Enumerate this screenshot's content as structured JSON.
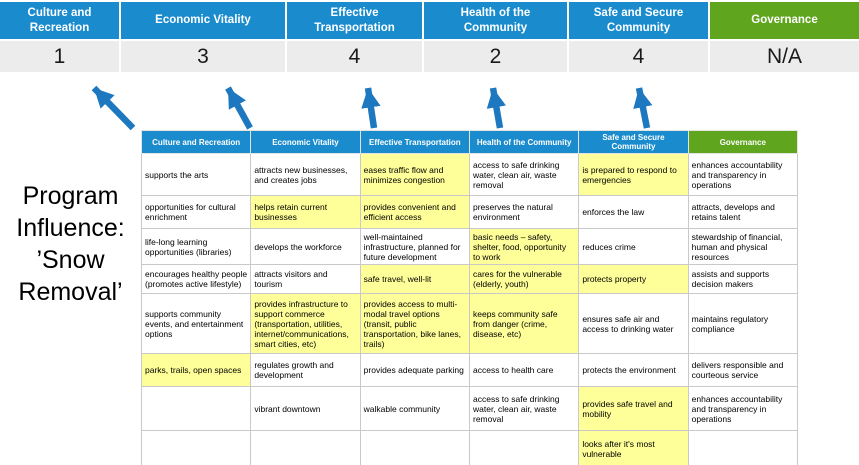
{
  "program": {
    "title": "Program Influence: ’Snow Removal’"
  },
  "colors": {
    "header_blue": "#1a8cce",
    "header_green": "#5fa51d",
    "highlight_yellow": "#ffff99",
    "arrow_blue": "#1e78c0",
    "score_bg": "#ececec"
  },
  "summary": {
    "columns": [
      {
        "label": "Culture and Recreation",
        "score": "1",
        "variant": "blue"
      },
      {
        "label": "Economic Vitality",
        "score": "3",
        "variant": "blue"
      },
      {
        "label": "Effective Transportation",
        "score": "4",
        "variant": "blue"
      },
      {
        "label": "Health of the Community",
        "score": "2",
        "variant": "blue"
      },
      {
        "label": "Safe and Secure Community",
        "score": "4",
        "variant": "blue"
      },
      {
        "label": "Governance",
        "score": "N/A",
        "variant": "green"
      }
    ]
  },
  "table": {
    "headers": [
      {
        "label": "Culture and Recreation",
        "variant": "blue"
      },
      {
        "label": "Economic Vitality",
        "variant": "blue"
      },
      {
        "label": "Effective Transportation",
        "variant": "blue"
      },
      {
        "label": "Health of the Community",
        "variant": "blue"
      },
      {
        "label": "Safe and Secure Community",
        "variant": "blue"
      },
      {
        "label": "Governance",
        "variant": "green"
      }
    ],
    "rows": [
      [
        {
          "t": "supports the arts",
          "h": false
        },
        {
          "t": "attracts new businesses, and creates jobs",
          "h": false
        },
        {
          "t": "eases traffic flow and minimizes congestion",
          "h": true
        },
        {
          "t": "access to safe drinking water, clean air, waste removal",
          "h": false
        },
        {
          "t": "is prepared to respond to emergencies",
          "h": true
        },
        {
          "t": "enhances accountability and transparency in operations",
          "h": false
        }
      ],
      [
        {
          "t": "opportunities for cultural enrichment",
          "h": false
        },
        {
          "t": "helps retain current businesses",
          "h": true
        },
        {
          "t": "provides convenient and efficient access",
          "h": true
        },
        {
          "t": "preserves the natural environment",
          "h": false
        },
        {
          "t": "enforces the law",
          "h": false
        },
        {
          "t": "attracts, develops and retains talent",
          "h": false
        }
      ],
      [
        {
          "t": "life-long learning opportunities (libraries)",
          "h": false
        },
        {
          "t": "develops the workforce",
          "h": false
        },
        {
          "t": "well-maintained infrastructure, planned for future development",
          "h": false
        },
        {
          "t": "basic needs – safety, shelter, food, opportunity to work",
          "h": true
        },
        {
          "t": "reduces crime",
          "h": false
        },
        {
          "t": "stewardship of financial, human and physical resources",
          "h": false
        }
      ],
      [
        {
          "t": "encourages healthy people (promotes active lifestyle)",
          "h": false
        },
        {
          "t": "attracts visitors and tourism",
          "h": false
        },
        {
          "t": "safe travel, well-lit",
          "h": true
        },
        {
          "t": "cares for the vulnerable (elderly, youth)",
          "h": true
        },
        {
          "t": "protects property",
          "h": true
        },
        {
          "t": "assists and supports decision makers",
          "h": false
        }
      ],
      [
        {
          "t": "supports community events, and entertainment options",
          "h": false
        },
        {
          "t": "provides infrastructure to support commerce (transportation, utilities, internet/communications, smart cities, etc)",
          "h": true
        },
        {
          "t": "provides access to multi-modal travel options (transit, public transportation, bike lanes, trails)",
          "h": true
        },
        {
          "t": "keeps community safe from danger (crime, disease, etc)",
          "h": true
        },
        {
          "t": "ensures safe air and access to drinking water",
          "h": false
        },
        {
          "t": "maintains regulatory compliance",
          "h": false
        }
      ],
      [
        {
          "t": "parks, trails, open spaces",
          "h": true
        },
        {
          "t": "regulates growth and development",
          "h": false
        },
        {
          "t": "provides adequate parking",
          "h": false
        },
        {
          "t": "access to health care",
          "h": false
        },
        {
          "t": "protects the environment",
          "h": false
        },
        {
          "t": "delivers responsible and courteous service",
          "h": false
        }
      ],
      [
        {
          "t": "",
          "h": false
        },
        {
          "t": "vibrant downtown",
          "h": false
        },
        {
          "t": "walkable community",
          "h": false
        },
        {
          "t": "access to safe drinking water, clean air, waste removal",
          "h": false
        },
        {
          "t": "provides safe travel and mobility",
          "h": true
        },
        {
          "t": "enhances accountability and transparency in operations",
          "h": false
        }
      ],
      [
        {
          "t": "",
          "h": false
        },
        {
          "t": "",
          "h": false
        },
        {
          "t": "",
          "h": false
        },
        {
          "t": "",
          "h": false
        },
        {
          "t": "looks after it's most vulnerable",
          "h": true
        },
        {
          "t": "",
          "h": false
        }
      ]
    ]
  }
}
